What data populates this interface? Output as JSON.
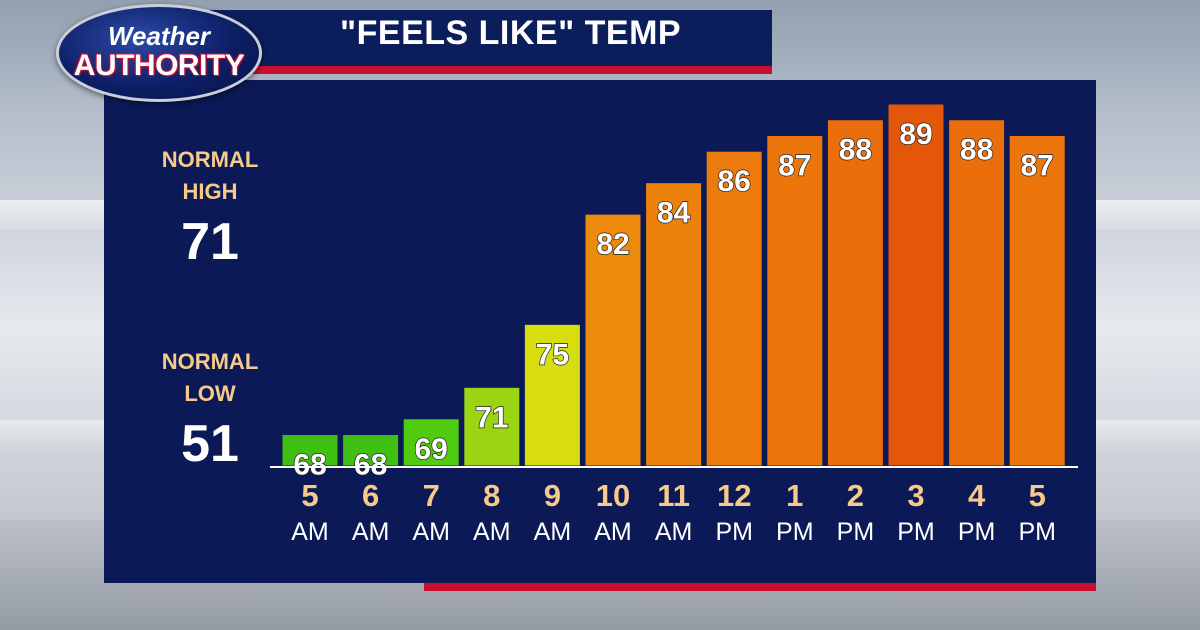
{
  "header": {
    "title": "\"FEELS LIKE\" TEMP",
    "logo_line1": "Weather",
    "logo_line2": "AUTHORITY"
  },
  "normals": {
    "high_label_line1": "NORMAL",
    "high_label_line2": "HIGH",
    "high_value": "71",
    "low_label_line1": "NORMAL",
    "low_label_line2": "LOW",
    "low_value": "51"
  },
  "colors": {
    "panel": "#0b1a57",
    "accent_red": "#c8102e",
    "label_gold": "#f7c98a"
  },
  "chart_data": {
    "type": "bar",
    "categories": [
      {
        "hour": "5",
        "period": "AM"
      },
      {
        "hour": "6",
        "period": "AM"
      },
      {
        "hour": "7",
        "period": "AM"
      },
      {
        "hour": "8",
        "period": "AM"
      },
      {
        "hour": "9",
        "period": "AM"
      },
      {
        "hour": "10",
        "period": "AM"
      },
      {
        "hour": "11",
        "period": "AM"
      },
      {
        "hour": "12",
        "period": "PM"
      },
      {
        "hour": "1",
        "period": "PM"
      },
      {
        "hour": "2",
        "period": "PM"
      },
      {
        "hour": "3",
        "period": "PM"
      },
      {
        "hour": "4",
        "period": "PM"
      },
      {
        "hour": "5",
        "period": "PM"
      }
    ],
    "values": [
      68,
      68,
      69,
      71,
      75,
      82,
      84,
      86,
      87,
      88,
      89,
      88,
      87
    ],
    "bar_colors": [
      "#3fbf12",
      "#3fbf12",
      "#50cc10",
      "#9ad412",
      "#d8dd10",
      "#ec8a0c",
      "#ec820c",
      "#ec7a0c",
      "#ec760c",
      "#ea6e0c",
      "#e4560a",
      "#ea6e0c",
      "#ec760c"
    ],
    "ylim": [
      66,
      89
    ],
    "data_labels": true,
    "legend": "none",
    "grid": false
  }
}
